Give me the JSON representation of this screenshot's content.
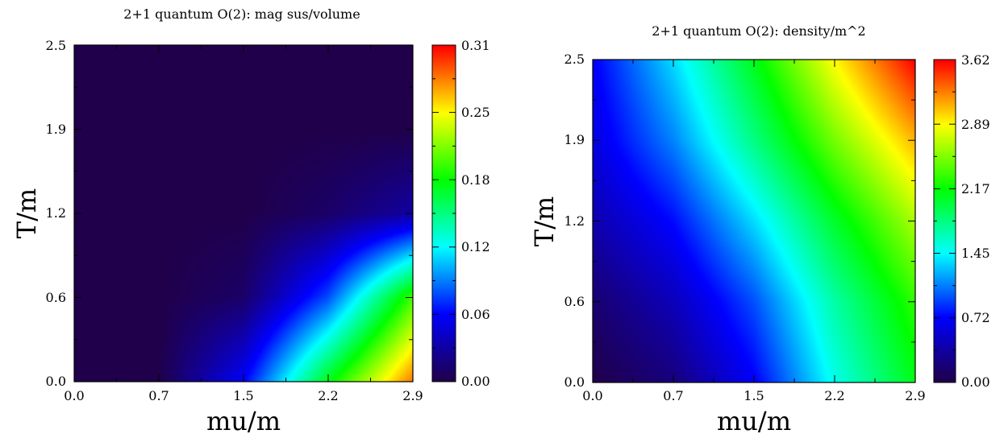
{
  "chart_data": [
    {
      "type": "heatmap",
      "title": "2+1 quantum O(2): mag sus/volume",
      "xlabel": "mu/m",
      "ylabel": "T/m",
      "xlim": [
        0.0,
        2.9
      ],
      "ylim": [
        0.0,
        2.5
      ],
      "x_ticks": [
        "0.0",
        "0.7",
        "1.5",
        "2.2",
        "2.9"
      ],
      "y_ticks": [
        "0.0",
        "0.6",
        "1.2",
        "1.9",
        "2.5"
      ],
      "colorbar": {
        "min": 0.0,
        "max": 0.31,
        "tick_labels": [
          "0.00",
          "0.06",
          "0.12",
          "0.18",
          "0.25",
          "0.31"
        ]
      },
      "colormap": [
        "#20004a",
        "#0000ff",
        "#00ffff",
        "#00ff00",
        "#ffff00",
        "#ff0000"
      ],
      "values_description_grid": {
        "x": [
          0.0,
          0.725,
          1.45,
          2.175,
          2.9
        ],
        "y": [
          0.0,
          0.625,
          1.25,
          1.875,
          2.5
        ],
        "z": [
          [
            0.0,
            0.0,
            0.06,
            0.18,
            0.28
          ],
          [
            0.0,
            0.0,
            0.01,
            0.08,
            0.2
          ],
          [
            0.0,
            0.0,
            0.0,
            0.01,
            0.03
          ],
          [
            0.0,
            0.0,
            0.0,
            0.0,
            0.0
          ],
          [
            0.0,
            0.0,
            0.0,
            0.0,
            0.0
          ]
        ]
      }
    },
    {
      "type": "heatmap",
      "title": "2+1 quantum O(2): density/m^2",
      "xlabel": "mu/m",
      "ylabel": "T/m",
      "xlim": [
        0.0,
        2.9
      ],
      "ylim": [
        0.0,
        2.5
      ],
      "x_ticks": [
        "0.0",
        "0.7",
        "1.5",
        "2.2",
        "2.9"
      ],
      "y_ticks": [
        "0.0",
        "0.6",
        "1.2",
        "1.9",
        "2.5"
      ],
      "colorbar": {
        "min": 0.0,
        "max": 3.62,
        "tick_labels": [
          "0.00",
          "0.72",
          "1.45",
          "2.17",
          "2.89",
          "3.62"
        ]
      },
      "colormap": [
        "#20004a",
        "#0000ff",
        "#00ffff",
        "#00ff00",
        "#ffff00",
        "#ff0000"
      ],
      "values_description_grid": {
        "x": [
          0.0,
          0.725,
          1.45,
          2.175,
          2.9
        ],
        "y": [
          0.0,
          0.625,
          1.25,
          1.875,
          2.5
        ],
        "z": [
          [
            0.0,
            0.2,
            0.7,
            1.5,
            2.1
          ],
          [
            0.15,
            0.45,
            0.95,
            1.7,
            2.3
          ],
          [
            0.4,
            0.75,
            1.35,
            2.05,
            2.65
          ],
          [
            0.6,
            1.1,
            1.8,
            2.5,
            3.1
          ],
          [
            0.7,
            1.35,
            2.1,
            2.9,
            3.62
          ]
        ]
      }
    }
  ]
}
